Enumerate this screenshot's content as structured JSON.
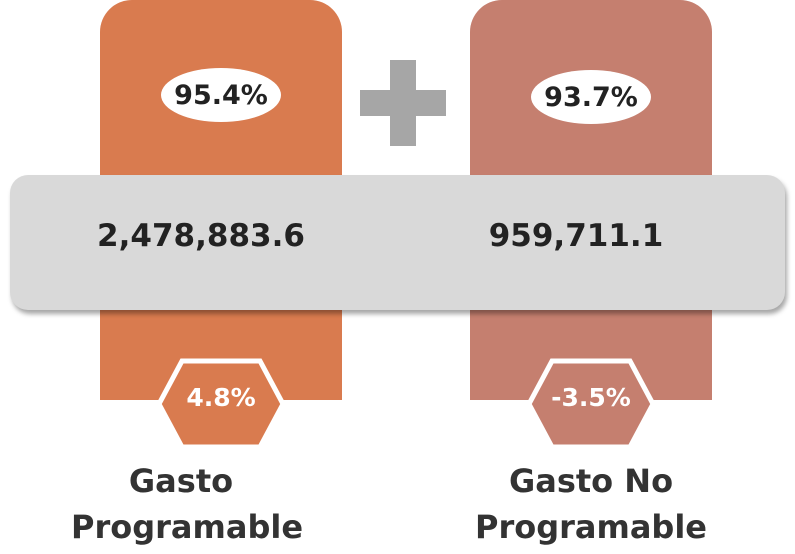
{
  "cards": [
    {
      "share": "95.4%",
      "amount": "2,478,883.6",
      "change": "4.8%",
      "label": "Gasto Programable",
      "color": "#d97b4f"
    },
    {
      "share": "93.7%",
      "amount": "959,711.1",
      "change": "-3.5%",
      "label": "Gasto No Programable",
      "color": "#c57f6f"
    }
  ]
}
